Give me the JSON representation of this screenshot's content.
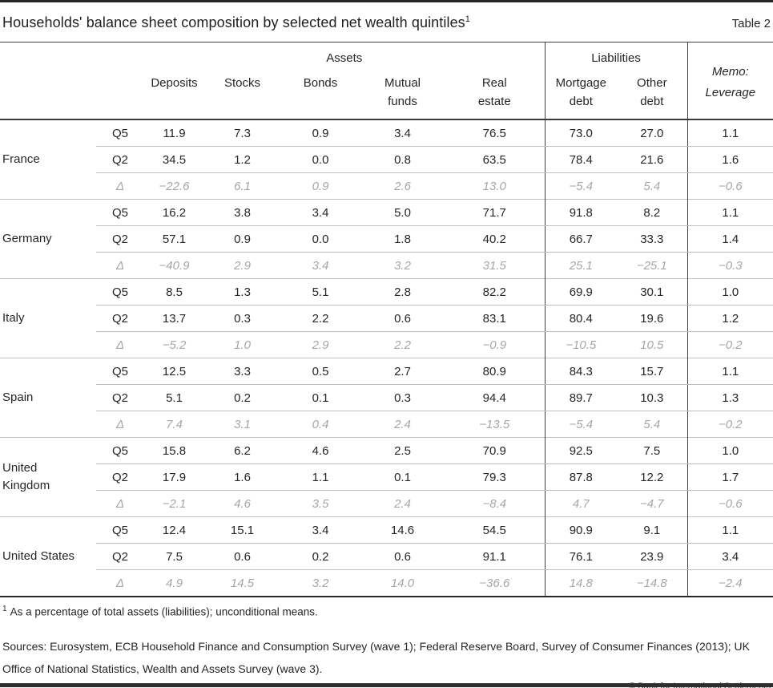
{
  "title": "Households' balance sheet composition by selected net wealth quintiles",
  "title_footnote_marker": "1",
  "table_label": "Table 2",
  "header": {
    "assets_group": "Assets",
    "liabilities_group": "Liabilities",
    "memo": "Memo:\nLeverage",
    "columns": [
      "Deposits",
      "Stocks",
      "Bonds",
      "Mutual\nfunds",
      "Real\nestate",
      "Mortgage\ndebt",
      "Other\ndebt"
    ]
  },
  "countries": [
    {
      "name": "France",
      "rows": [
        {
          "label": "Q5",
          "values": [
            "11.9",
            "7.3",
            "0.9",
            "3.4",
            "76.5",
            "73.0",
            "27.0",
            "1.1"
          ]
        },
        {
          "label": "Q2",
          "values": [
            "34.5",
            "1.2",
            "0.0",
            "0.8",
            "63.5",
            "78.4",
            "21.6",
            "1.6"
          ]
        },
        {
          "label": "Δ",
          "values": [
            "−22.6",
            "6.1",
            "0.9",
            "2.6",
            "13.0",
            "−5.4",
            "5.4",
            "−0.6"
          ]
        }
      ]
    },
    {
      "name": "Germany",
      "rows": [
        {
          "label": "Q5",
          "values": [
            "16.2",
            "3.8",
            "3.4",
            "5.0",
            "71.7",
            "91.8",
            "8.2",
            "1.1"
          ]
        },
        {
          "label": "Q2",
          "values": [
            "57.1",
            "0.9",
            "0.0",
            "1.8",
            "40.2",
            "66.7",
            "33.3",
            "1.4"
          ]
        },
        {
          "label": "Δ",
          "values": [
            "−40.9",
            "2.9",
            "3.4",
            "3.2",
            "31.5",
            "25.1",
            "−25.1",
            "−0.3"
          ]
        }
      ]
    },
    {
      "name": "Italy",
      "rows": [
        {
          "label": "Q5",
          "values": [
            "8.5",
            "1.3",
            "5.1",
            "2.8",
            "82.2",
            "69.9",
            "30.1",
            "1.0"
          ]
        },
        {
          "label": "Q2",
          "values": [
            "13.7",
            "0.3",
            "2.2",
            "0.6",
            "83.1",
            "80.4",
            "19.6",
            "1.2"
          ]
        },
        {
          "label": "Δ",
          "values": [
            "−5.2",
            "1.0",
            "2.9",
            "2.2",
            "−0.9",
            "−10.5",
            "10.5",
            "−0.2"
          ]
        }
      ]
    },
    {
      "name": "Spain",
      "rows": [
        {
          "label": "Q5",
          "values": [
            "12.5",
            "3.3",
            "0.5",
            "2.7",
            "80.9",
            "84.3",
            "15.7",
            "1.1"
          ]
        },
        {
          "label": "Q2",
          "values": [
            "5.1",
            "0.2",
            "0.1",
            "0.3",
            "94.4",
            "89.7",
            "10.3",
            "1.3"
          ]
        },
        {
          "label": "Δ",
          "values": [
            "7.4",
            "3.1",
            "0.4",
            "2.4",
            "−13.5",
            "−5.4",
            "5.4",
            "−0.2"
          ]
        }
      ]
    },
    {
      "name": "United Kingdom",
      "rows": [
        {
          "label": "Q5",
          "values": [
            "15.8",
            "6.2",
            "4.6",
            "2.5",
            "70.9",
            "92.5",
            "7.5",
            "1.0"
          ]
        },
        {
          "label": "Q2",
          "values": [
            "17.9",
            "1.6",
            "1.1",
            "0.1",
            "79.3",
            "87.8",
            "12.2",
            "1.7"
          ]
        },
        {
          "label": "Δ",
          "values": [
            "−2.1",
            "4.6",
            "3.5",
            "2.4",
            "−8.4",
            "4.7",
            "−4.7",
            "−0.6"
          ]
        }
      ]
    },
    {
      "name": "United States",
      "rows": [
        {
          "label": "Q5",
          "values": [
            "12.4",
            "15.1",
            "3.4",
            "14.6",
            "54.5",
            "90.9",
            "9.1",
            "1.1"
          ]
        },
        {
          "label": "Q2",
          "values": [
            "7.5",
            "0.6",
            "0.2",
            "0.6",
            "91.1",
            "76.1",
            "23.9",
            "3.4"
          ]
        },
        {
          "label": "Δ",
          "values": [
            "4.9",
            "14.5",
            "3.2",
            "14.0",
            "−36.6",
            "14.8",
            "−14.8",
            "−2.4"
          ]
        }
      ]
    }
  ],
  "footnote": {
    "marker": "1",
    "text": "As a percentage of total assets (liabilities); unconditional means."
  },
  "sources": "Sources: Eurosystem, ECB Household Finance and Consumption Survey (wave 1); Federal Reserve Board, Survey of Consumer Finances (2013); UK Office of National Statistics, Wealth and Assets Survey (wave 3).",
  "copyright": "© Bank for International Settlements"
}
